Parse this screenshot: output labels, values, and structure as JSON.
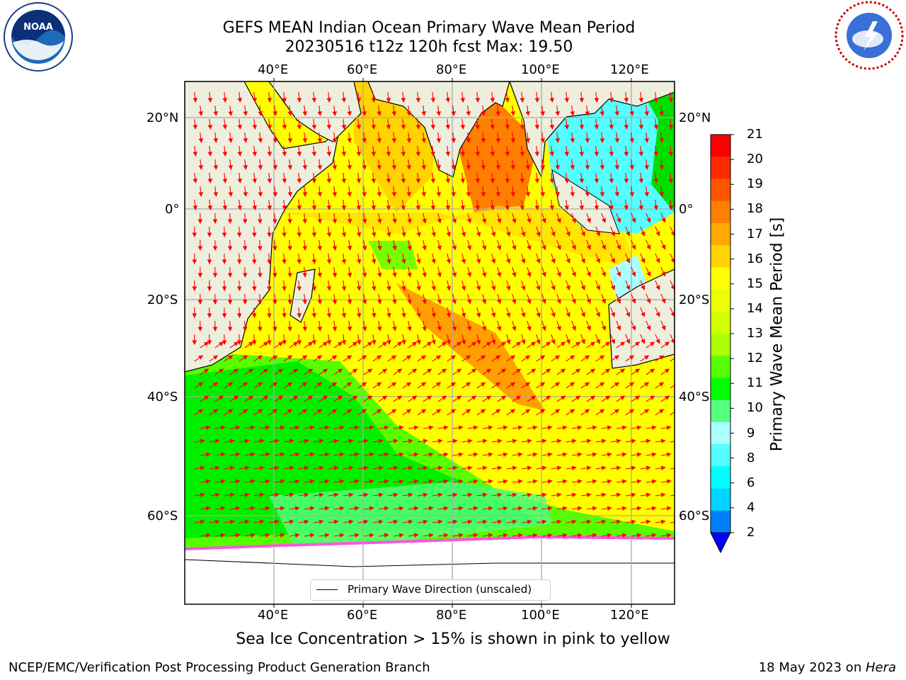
{
  "title_line1": "GEFS MEAN Indian Ocean Primary Wave Mean Period",
  "title_line2": "20230516 t12z 120h fcst   Max: 19.50",
  "logos": {
    "left": "NOAA",
    "right": "NATIONAL WEATHER SERVICE"
  },
  "map": {
    "lon_ticks_top": [
      "40°E",
      "60°E",
      "80°E",
      "100°E",
      "120°E"
    ],
    "lon_ticks_bottom": [
      "40°E",
      "60°E",
      "80°E",
      "100°E",
      "120°E"
    ],
    "lat_ticks_left": [
      "20°N",
      "0°",
      "20°S",
      "40°S",
      "60°S"
    ],
    "lat_ticks_right": [
      "20°N",
      "0°",
      "20°S",
      "40°S",
      "60°S"
    ],
    "legend_label": "Primary Wave Direction (unscaled)",
    "colors": {
      "land": "#eeeedd",
      "vector": "#ff0000",
      "ice": "#ffffff"
    }
  },
  "colorbar": {
    "title": "Primary Wave Mean Period [s]",
    "tick_labels": [
      "21",
      "20",
      "19",
      "18",
      "17",
      "16",
      "15",
      "14",
      "13",
      "12",
      "11",
      "10",
      "9",
      "8",
      "6",
      "4",
      "2"
    ],
    "colors": [
      "#ff0000",
      "#ff2a00",
      "#ff5500",
      "#ff7f00",
      "#ffa900",
      "#ffd400",
      "#ffff00",
      "#eaff00",
      "#d4ff00",
      "#aaff00",
      "#55ff00",
      "#00ff00",
      "#55ff80",
      "#aaffff",
      "#55ffff",
      "#00ffff",
      "#00d4ff",
      "#0080ff"
    ],
    "extend_color": "#0000ff"
  },
  "footnote": "Sea Ice Concentration > 15% is shown in pink to yellow",
  "footer_left": "NCEP/EMC/Verification Post Processing Product Generation Branch",
  "footer_right_prefix": "18 May 2023 on ",
  "footer_right_machine": "Hera"
}
